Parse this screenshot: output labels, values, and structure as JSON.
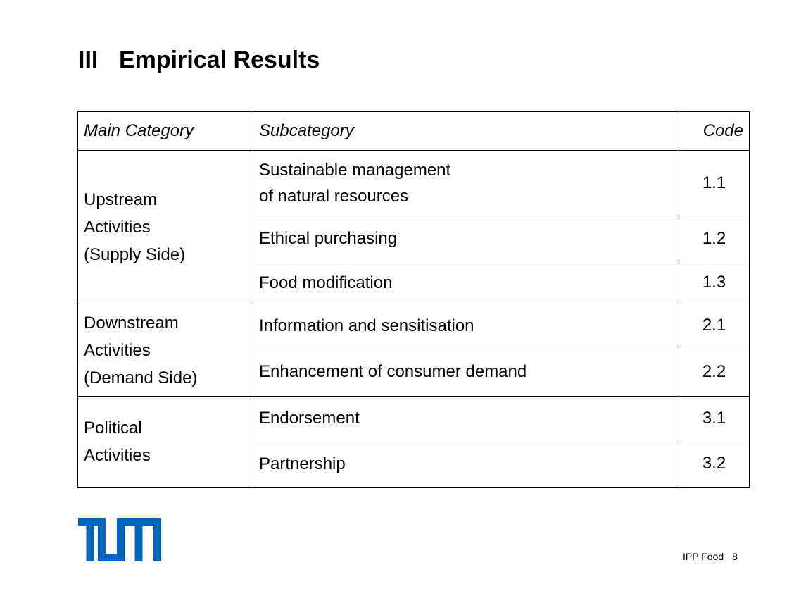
{
  "slide": {
    "title_number": "III",
    "title_text": "Empirical Results"
  },
  "table": {
    "headers": {
      "main": "Main Category",
      "sub": "Subcategory",
      "code": "Code"
    },
    "groups": [
      {
        "main": [
          "Upstream",
          "Activities",
          "(Supply Side)"
        ],
        "rows": [
          {
            "sub": [
              "Sustainable management",
              "of natural resources"
            ],
            "code": "1.1"
          },
          {
            "sub": [
              "Ethical purchasing"
            ],
            "code": "1.2"
          },
          {
            "sub": [
              "Food modification"
            ],
            "code": "1.3"
          }
        ]
      },
      {
        "main": [
          "Downstream",
          "Activities",
          "(Demand Side)"
        ],
        "rows": [
          {
            "sub": [
              "Information and sensitisation"
            ],
            "code": "2.1"
          },
          {
            "sub": [
              "Enhancement of consumer demand"
            ],
            "code": "2.2"
          }
        ]
      },
      {
        "main": [
          "Political",
          "Activities"
        ],
        "rows": [
          {
            "sub": [
              "Endorsement"
            ],
            "code": "3.1"
          },
          {
            "sub": [
              "Partnership"
            ],
            "code": "3.2"
          }
        ]
      }
    ]
  },
  "logo": {
    "text": "TUM",
    "color": "#0065BD"
  },
  "footer": {
    "label": "IPP Food",
    "page": "8"
  }
}
